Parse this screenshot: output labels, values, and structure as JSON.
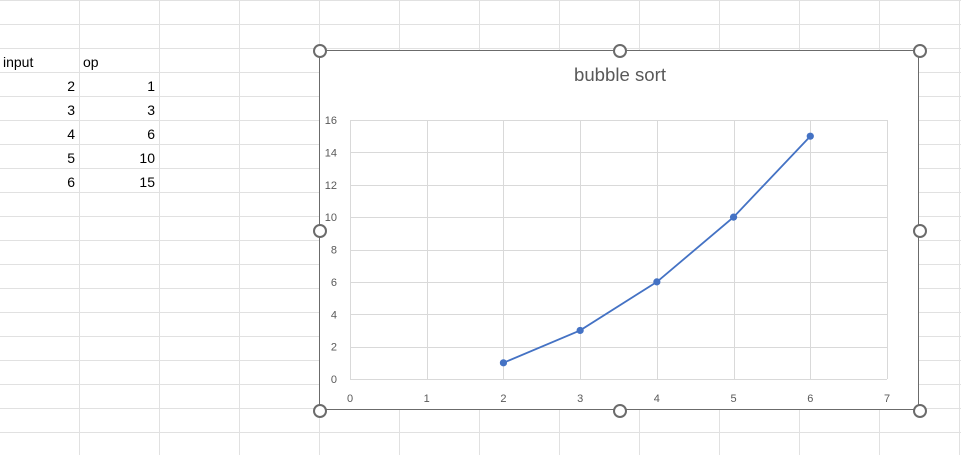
{
  "sheet": {
    "headers": {
      "input": "input",
      "op": "op"
    },
    "rows": [
      {
        "input": "2",
        "op": "1"
      },
      {
        "input": "3",
        "op": "3"
      },
      {
        "input": "4",
        "op": "6"
      },
      {
        "input": "5",
        "op": "10"
      },
      {
        "input": "6",
        "op": "15"
      }
    ]
  },
  "chart_data": {
    "type": "scatter",
    "title": "bubble sort",
    "xlabel": "",
    "ylabel": "",
    "xlim": [
      0,
      7
    ],
    "ylim": [
      0,
      16
    ],
    "x_ticks": [
      "0",
      "1",
      "2",
      "3",
      "4",
      "5",
      "6",
      "7"
    ],
    "y_ticks": [
      "0",
      "2",
      "4",
      "6",
      "8",
      "10",
      "12",
      "14",
      "16"
    ],
    "grid": true,
    "legend": "none",
    "lines": true,
    "markers": true,
    "series": [
      {
        "x": [
          2,
          3,
          4,
          5,
          6
        ],
        "values": [
          1,
          3,
          6,
          10,
          15
        ],
        "color": "#4472c4"
      }
    ]
  }
}
